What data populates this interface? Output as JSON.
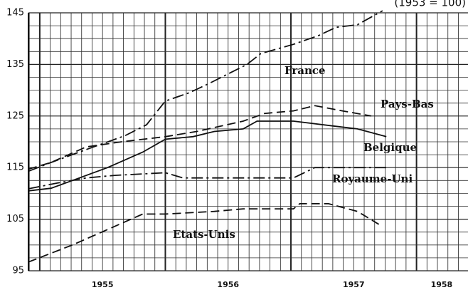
{
  "chart_data": {
    "type": "line",
    "annotation": "(1953 = 100)",
    "xlim": [
      1954.91,
      1958.41
    ],
    "ylim": [
      95,
      145
    ],
    "yticks": [
      95,
      105,
      115,
      125,
      135,
      145
    ],
    "xticks": [
      {
        "value": 1955.5,
        "label": "1955"
      },
      {
        "value": 1956.5,
        "label": "1956"
      },
      {
        "value": 1957.5,
        "label": "1957"
      },
      {
        "value": 1958.2,
        "label": "1958"
      }
    ],
    "grid": true,
    "series": [
      {
        "name": "France",
        "color": "#111111",
        "dash": "dashdot",
        "x": [
          1954.91,
          1955.09,
          1955.37,
          1955.68,
          1955.85,
          1956.0,
          1956.19,
          1956.34,
          1956.65,
          1956.76,
          1957.02,
          1957.22,
          1957.36,
          1957.53,
          1957.73
        ],
        "values": [
          114.3,
          116,
          118.5,
          121.2,
          123.3,
          127.9,
          129.5,
          131.2,
          135,
          137.1,
          138.9,
          140.6,
          142.2,
          142.7,
          145.4
        ]
      },
      {
        "name": "Pays-Bas",
        "color": "#111111",
        "dash": "dashed",
        "x": [
          1954.91,
          1955.09,
          1955.37,
          1955.65,
          1956.0,
          1956.25,
          1956.62,
          1956.79,
          1957.02,
          1957.19,
          1957.41,
          1957.64
        ],
        "values": [
          114.7,
          116,
          119,
          120,
          121,
          122,
          124,
          125.5,
          126,
          127,
          126,
          125
        ]
      },
      {
        "name": "Belgique",
        "color": "#111111",
        "dash": "solid",
        "x": [
          1954.91,
          1955.09,
          1955.26,
          1955.54,
          1955.68,
          1955.82,
          1956.0,
          1956.22,
          1956.39,
          1956.62,
          1956.73,
          1957.02,
          1957.36,
          1957.53,
          1957.76
        ],
        "values": [
          110.5,
          111,
          112.5,
          115,
          116.5,
          118,
          120.5,
          121,
          122,
          122.5,
          124,
          124,
          123,
          122.5,
          121
        ]
      },
      {
        "name": "Royaume-Uni",
        "color": "#111111",
        "dash": "dashdot",
        "x": [
          1954.91,
          1955.14,
          1955.37,
          1955.6,
          1956.0,
          1956.14,
          1956.39,
          1957.02,
          1957.19,
          1957.53,
          1957.76
        ],
        "values": [
          110.9,
          112,
          113,
          113.5,
          114,
          113,
          113,
          113,
          115,
          115,
          115
        ]
      },
      {
        "name": "Etats-Unis",
        "color": "#111111",
        "dash": "dashed",
        "x": [
          1954.91,
          1955.26,
          1955.54,
          1955.82,
          1956.0,
          1956.39,
          1956.62,
          1957.02,
          1957.07,
          1957.3,
          1957.53,
          1957.7
        ],
        "values": [
          96.7,
          100,
          103,
          106,
          106,
          106.5,
          107,
          107,
          108,
          108,
          106.5,
          104
        ]
      }
    ]
  }
}
